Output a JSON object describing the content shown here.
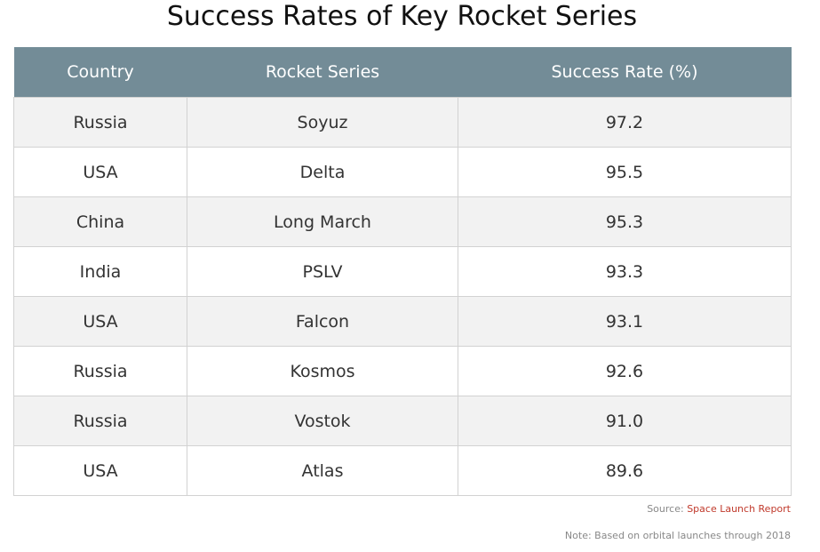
{
  "chart_data": {
    "type": "table",
    "title": "Success Rates of Key Rocket Series",
    "columns": [
      "Country",
      "Rocket Series",
      "Success Rate (%)"
    ],
    "rows": [
      {
        "country": "Russia",
        "series": "Soyuz",
        "rate": "97.2"
      },
      {
        "country": "USA",
        "series": "Delta",
        "rate": "95.5"
      },
      {
        "country": "China",
        "series": "Long March",
        "rate": "95.3"
      },
      {
        "country": "India",
        "series": "PSLV",
        "rate": "93.3"
      },
      {
        "country": "USA",
        "series": "Falcon",
        "rate": "93.1"
      },
      {
        "country": "Russia",
        "series": "Kosmos",
        "rate": "92.6"
      },
      {
        "country": "Russia",
        "series": "Vostok",
        "rate": "91.0"
      },
      {
        "country": "USA",
        "series": "Atlas",
        "rate": "89.6"
      }
    ]
  },
  "footer": {
    "source_label": "Source:",
    "source_name": "Space Launch Report",
    "note": "Note: Based on orbital launches through 2018"
  },
  "colors": {
    "header_bg": "#738c97",
    "source_accent": "#c0392b"
  }
}
